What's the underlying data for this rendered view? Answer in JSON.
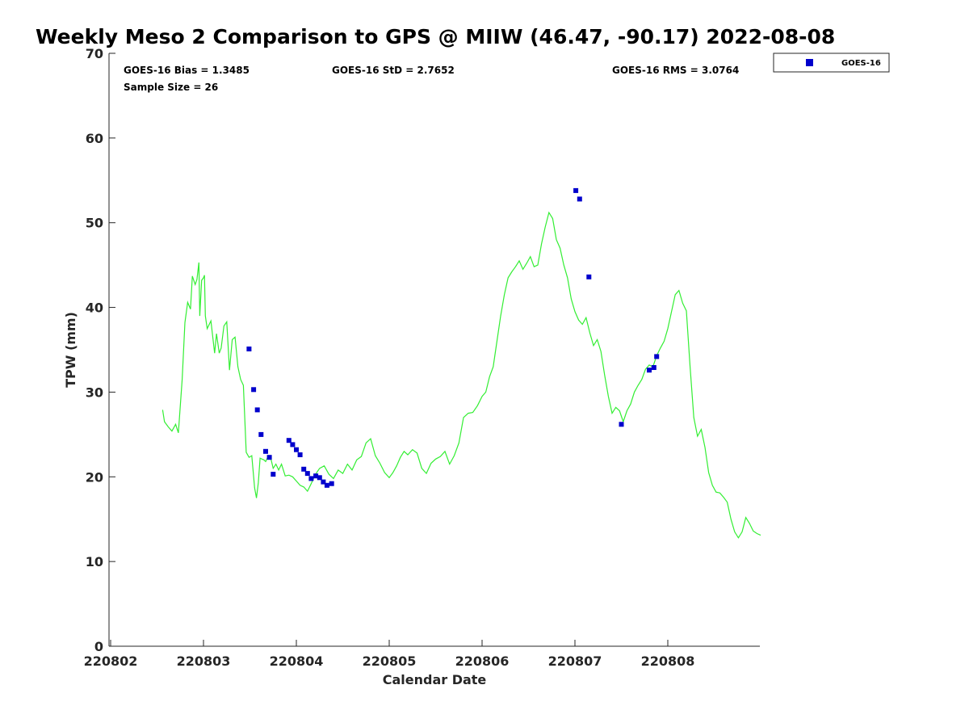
{
  "chart_data": {
    "type": "scatter",
    "title": "Weekly Meso 2 Comparison to GPS @ MIIW (46.47, -90.17) 2022-08-08",
    "xlabel": "Calendar Date",
    "ylabel": "TPW (mm)",
    "xlim": [
      0,
      7
    ],
    "ylim": [
      0,
      70
    ],
    "x_ticks": [
      {
        "v": 0,
        "label": "220802"
      },
      {
        "v": 1,
        "label": "220803"
      },
      {
        "v": 2,
        "label": "220804"
      },
      {
        "v": 3,
        "label": "220805"
      },
      {
        "v": 4,
        "label": "220806"
      },
      {
        "v": 5,
        "label": "220807"
      },
      {
        "v": 6,
        "label": "220808"
      }
    ],
    "y_ticks": [
      0,
      10,
      20,
      30,
      40,
      50,
      60,
      70
    ],
    "grid": false,
    "legend": {
      "position": "top-right outside",
      "entries": [
        "GOES-16"
      ]
    },
    "stats": {
      "bias": "GOES-16 Bias = 1.3485",
      "std": "GOES-16 StD = 2.7652",
      "rms": "GOES-16 RMS = 3.0764",
      "sample": "Sample Size = 26"
    },
    "series": [
      {
        "name": "GOES-16",
        "kind": "points",
        "color": "#0000cc",
        "x": [
          1.49,
          1.54,
          1.58,
          1.62,
          1.67,
          1.71,
          1.75,
          1.92,
          1.96,
          2.0,
          2.04,
          2.08,
          2.12,
          2.16,
          2.21,
          2.25,
          2.29,
          2.33,
          2.38,
          5.01,
          5.05,
          5.15,
          5.5,
          5.8,
          5.85,
          5.88
        ],
        "y": [
          35.1,
          30.3,
          27.9,
          25.0,
          23.0,
          22.3,
          20.3,
          24.3,
          23.8,
          23.2,
          22.6,
          20.9,
          20.4,
          19.8,
          20.1,
          19.9,
          19.4,
          19.0,
          19.2,
          53.8,
          52.8,
          43.6,
          26.2,
          32.6,
          32.9,
          34.2
        ]
      },
      {
        "kind": "line",
        "color": "#33ee33",
        "x": [
          0.56,
          0.58,
          0.62,
          0.66,
          0.7,
          0.73,
          0.77,
          0.8,
          0.83,
          0.86,
          0.88,
          0.91,
          0.93,
          0.95,
          0.96,
          0.98,
          1.0,
          1.01,
          1.02,
          1.04,
          1.08,
          1.1,
          1.12,
          1.14,
          1.17,
          1.19,
          1.22,
          1.25,
          1.28,
          1.31,
          1.34,
          1.37,
          1.4,
          1.43,
          1.46,
          1.49,
          1.52,
          1.55,
          1.57,
          1.59,
          1.61,
          1.63,
          1.65,
          1.67,
          1.69,
          1.72,
          1.75,
          1.78,
          1.81,
          1.84,
          1.88,
          1.92,
          1.96,
          2.0,
          2.04,
          2.08,
          2.12,
          2.16,
          2.2,
          2.25,
          2.3,
          2.35,
          2.4,
          2.45,
          2.5,
          2.55,
          2.6,
          2.65,
          2.7,
          2.75,
          2.8,
          2.85,
          2.9,
          2.95,
          3.0,
          3.04,
          3.08,
          3.12,
          3.16,
          3.2,
          3.25,
          3.3,
          3.35,
          3.4,
          3.45,
          3.5,
          3.55,
          3.6,
          3.65,
          3.7,
          3.75,
          3.8,
          3.85,
          3.9,
          3.95,
          4.0,
          4.04,
          4.08,
          4.12,
          4.16,
          4.2,
          4.24,
          4.28,
          4.32,
          4.36,
          4.4,
          4.44,
          4.48,
          4.52,
          4.56,
          4.6,
          4.64,
          4.68,
          4.72,
          4.76,
          4.8,
          4.84,
          4.88,
          4.92,
          4.96,
          5.0,
          5.04,
          5.08,
          5.12,
          5.16,
          5.2,
          5.24,
          5.28,
          5.32,
          5.36,
          5.4,
          5.44,
          5.48,
          5.52,
          5.56,
          5.6,
          5.64,
          5.68,
          5.72,
          5.76,
          5.8,
          5.84,
          5.88,
          5.92,
          5.96,
          6.0,
          6.04,
          6.08,
          6.12,
          6.16,
          6.2,
          6.24,
          6.28,
          6.32,
          6.36,
          6.4,
          6.44,
          6.48,
          6.52,
          6.56,
          6.6,
          6.64,
          6.68,
          6.72,
          6.76,
          6.8,
          6.84,
          6.88,
          6.92,
          6.96,
          7.0
        ],
        "y": [
          27.9,
          26.5,
          25.9,
          25.4,
          26.2,
          25.2,
          31.5,
          38.2,
          40.6,
          39.8,
          43.7,
          42.7,
          43.3,
          45.3,
          39.0,
          43.2,
          43.5,
          43.8,
          39.0,
          37.5,
          38.4,
          36.5,
          34.6,
          36.9,
          34.6,
          35.2,
          37.8,
          38.3,
          32.6,
          36.2,
          36.5,
          33.0,
          31.5,
          30.8,
          22.9,
          22.3,
          22.5,
          18.7,
          17.5,
          19.3,
          22.2,
          22.1,
          22.0,
          21.8,
          22.3,
          22.4,
          21.0,
          21.5,
          20.8,
          21.5,
          20.1,
          20.2,
          20.0,
          19.5,
          19.0,
          18.8,
          18.3,
          19.2,
          20.2,
          21.0,
          21.3,
          20.3,
          19.8,
          20.8,
          20.4,
          21.5,
          20.8,
          22.0,
          22.4,
          24.0,
          24.5,
          22.5,
          21.6,
          20.5,
          19.9,
          20.5,
          21.3,
          22.3,
          23.0,
          22.6,
          23.2,
          22.8,
          21.0,
          20.4,
          21.6,
          22.1,
          22.4,
          23.0,
          21.5,
          22.5,
          24.0,
          27.0,
          27.5,
          27.6,
          28.4,
          29.5,
          30.0,
          31.8,
          33.0,
          36.0,
          39.0,
          41.5,
          43.5,
          44.2,
          44.8,
          45.5,
          44.5,
          45.2,
          46.0,
          44.8,
          45.0,
          47.5,
          49.5,
          51.2,
          50.5,
          48.0,
          47.0,
          45.0,
          43.5,
          41.0,
          39.5,
          38.5,
          38.0,
          38.8,
          37.0,
          35.5,
          36.2,
          34.8,
          32.0,
          29.5,
          27.5,
          28.2,
          27.8,
          26.5,
          27.8,
          28.6,
          30.0,
          30.8,
          31.5,
          32.7,
          33.2,
          33.0,
          34.3,
          35.2,
          36.0,
          37.5,
          39.5,
          41.5,
          42.0,
          40.5,
          39.6,
          33.0,
          27.0,
          24.8,
          25.6,
          23.5,
          20.5,
          19.0,
          18.2,
          18.1,
          17.6,
          17.0,
          15.0,
          13.5,
          12.8,
          13.5,
          15.2,
          14.5,
          13.6,
          13.3,
          13.1
        ]
      }
    ]
  }
}
